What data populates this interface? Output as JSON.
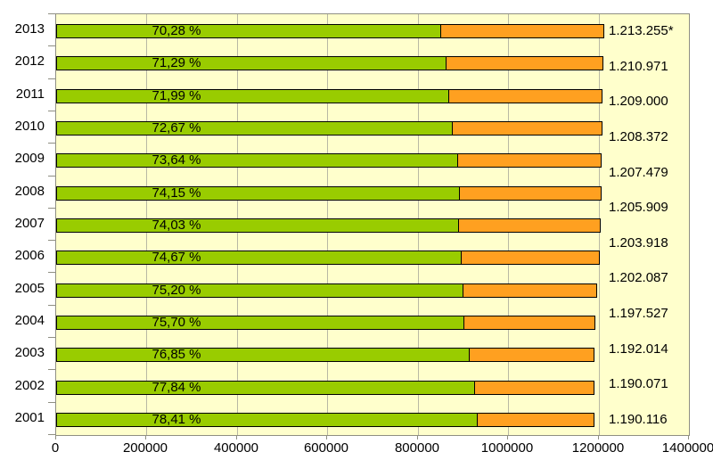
{
  "chart_data": {
    "type": "bar",
    "orientation": "horizontal",
    "stacked": true,
    "title": "",
    "legend": "none",
    "grid": "vertical-only",
    "plot_background": "#FFFFCC",
    "x_axis": {
      "min": 0,
      "max": 1400000,
      "tick_step": 200000,
      "tick_labels": [
        "0",
        "200000",
        "400000",
        "600000",
        "800000",
        "1000000",
        "1200000",
        "1400000"
      ]
    },
    "y_axis_categories_top_to_bottom": [
      "2013",
      "2012",
      "2011",
      "2010",
      "2009",
      "2008",
      "2007",
      "2006",
      "2005",
      "2004",
      "2003",
      "2002",
      "2001"
    ],
    "series": [
      {
        "name": "green-share",
        "color": "#99CC00",
        "unit": "%"
      },
      {
        "name": "orange-remainder",
        "color": "#FFA020"
      }
    ],
    "rows": [
      {
        "year": "2013",
        "percent_label": "70,28 %",
        "percent": 70.28,
        "total": 1213255,
        "total_label": "1.213.255*"
      },
      {
        "year": "2012",
        "percent_label": "71,29 %",
        "percent": 71.29,
        "total": 1210971,
        "total_label": "1.210.971"
      },
      {
        "year": "2011",
        "percent_label": "71,99 %",
        "percent": 71.99,
        "total": 1209000,
        "total_label": "1.209.000"
      },
      {
        "year": "2010",
        "percent_label": "72,67 %",
        "percent": 72.67,
        "total": 1208372,
        "total_label": "1.208.372"
      },
      {
        "year": "2009",
        "percent_label": "73,64 %",
        "percent": 73.64,
        "total": 1207479,
        "total_label": "1.207.479"
      },
      {
        "year": "2008",
        "percent_label": "74,15 %",
        "percent": 74.15,
        "total": 1205909,
        "total_label": "1.205.909"
      },
      {
        "year": "2007",
        "percent_label": "74,03 %",
        "percent": 74.03,
        "total": 1203918,
        "total_label": "1.203.918"
      },
      {
        "year": "2006",
        "percent_label": "74,67 %",
        "percent": 74.67,
        "total": 1202087,
        "total_label": "1.202.087"
      },
      {
        "year": "2005",
        "percent_label": "75,20 %",
        "percent": 75.2,
        "total": 1197527,
        "total_label": "1.197.527"
      },
      {
        "year": "2004",
        "percent_label": "75,70 %",
        "percent": 75.7,
        "total": 1192014,
        "total_label": "1.192.014"
      },
      {
        "year": "2003",
        "percent_label": "76,85 %",
        "percent": 76.85,
        "total": 1190071,
        "total_label": "1.190.071"
      },
      {
        "year": "2002",
        "percent_label": "77,84 %",
        "percent": 77.84,
        "total": 1190116,
        "total_label": "1.190.116"
      },
      {
        "year": "2001",
        "percent_label": "78,41 %",
        "percent": 78.41,
        "total": 1190116,
        "total_label": ""
      }
    ],
    "right_value_labels_top_to_bottom": [
      "1.213.255*",
      "1.210.971",
      "1.209.000",
      "1.208.372",
      "1.207.479",
      "1.205.909",
      "1.203.918",
      "1.202.087",
      "1.197.527",
      "1.192.014",
      "1.190.071",
      "1.190.116"
    ]
  },
  "colors": {
    "page_bg": "#FFFFFF",
    "plot_bg": "#FFFFCC",
    "green": "#99CC00",
    "orange": "#FFA020",
    "bar_border": "#000000",
    "gridline": "#B9B9A4",
    "plot_border": "#8F8F82",
    "tick": "#8F8F82",
    "text": "#000000"
  }
}
